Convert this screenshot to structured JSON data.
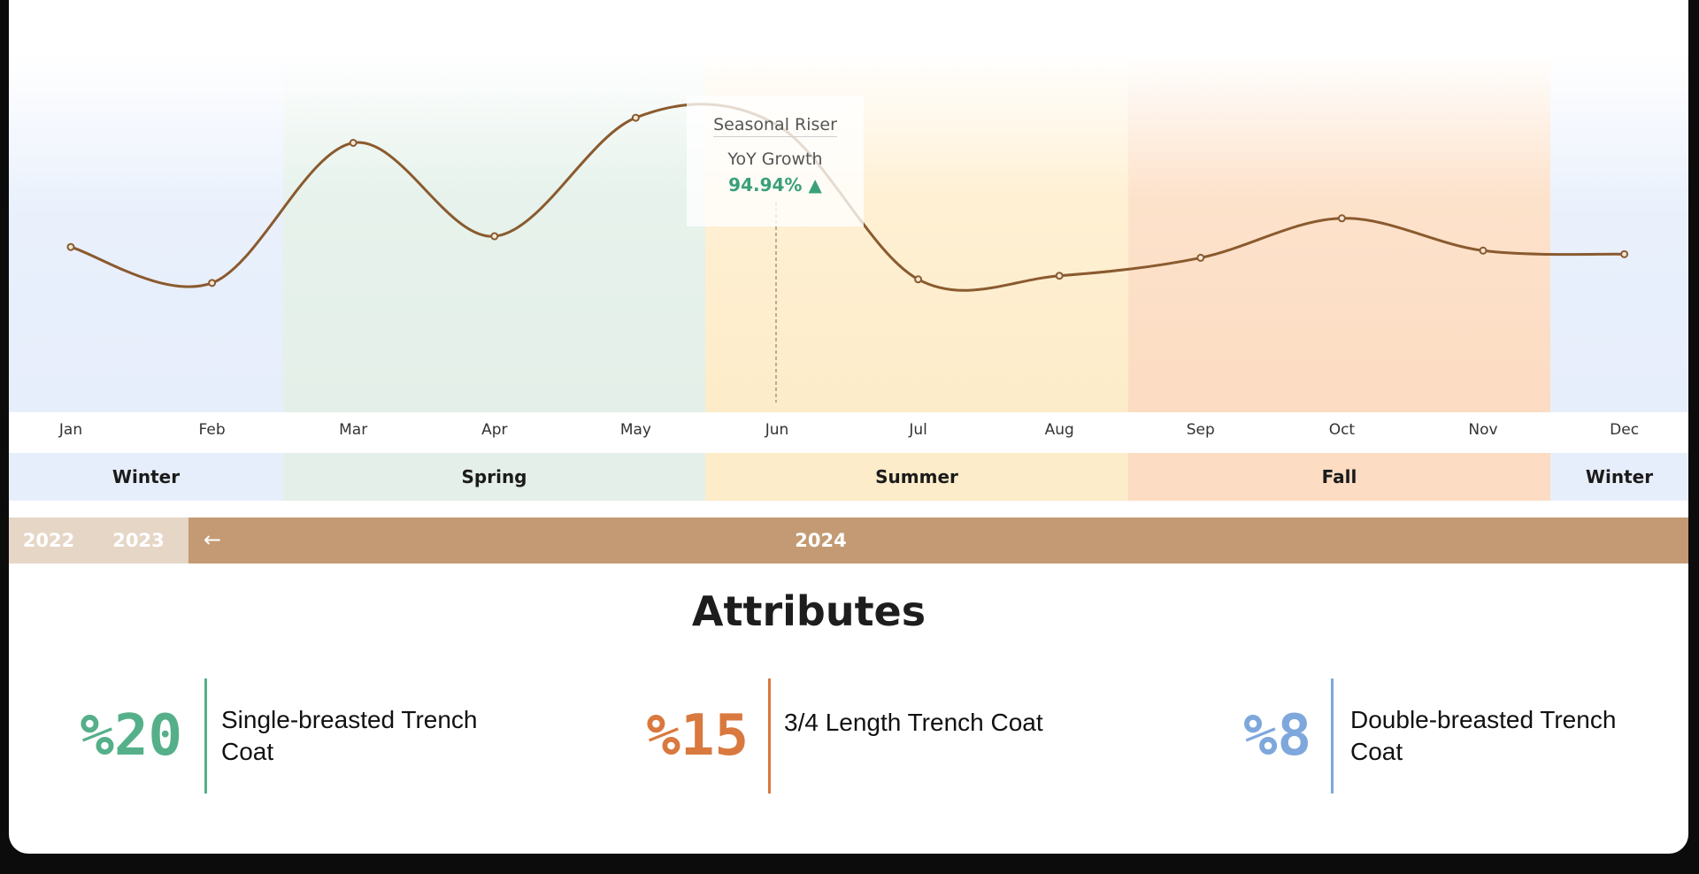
{
  "chart_data": {
    "type": "line",
    "x": [
      "Jan",
      "Feb",
      "Mar",
      "Apr",
      "May",
      "Jun",
      "Jul",
      "Aug",
      "Sep",
      "Oct",
      "Nov",
      "Dec"
    ],
    "values": [
      46,
      36,
      75,
      49,
      82,
      80,
      37,
      38,
      43,
      54,
      45,
      44
    ],
    "ylim": [
      0,
      100
    ],
    "series_color": "#8a5a2e",
    "grid": false
  },
  "seasons": [
    {
      "label": "Winter",
      "color": "#e7eefb"
    },
    {
      "label": "Spring",
      "color": "#e3efe8"
    },
    {
      "label": "Summer",
      "color": "#fdecc9"
    },
    {
      "label": "Fall",
      "color": "#fcdcc2"
    },
    {
      "label": "Winter",
      "color": "#e7eefb"
    }
  ],
  "years": {
    "previous": [
      "2022",
      "2023"
    ],
    "back_icon": "arrow-left-icon",
    "back_glyph": "←",
    "current": "2024"
  },
  "tooltip": {
    "title": "Seasonal Riser",
    "metric": "YoY Growth",
    "value": "94.94%",
    "trend_glyph": "▲",
    "trend_color": "#3aa07a"
  },
  "attributes": {
    "title": "Attributes",
    "items": [
      {
        "pct": "%20",
        "name": "Single-breasted Trench Coat",
        "color": "#55b08a"
      },
      {
        "pct": "%15",
        "name": "3/4 Length Trench Coat",
        "color": "#d9793f"
      },
      {
        "pct": "%8",
        "name": "Double-breasted Trench Coat",
        "color": "#7ea8dc"
      }
    ]
  }
}
